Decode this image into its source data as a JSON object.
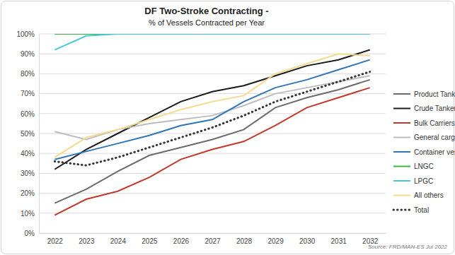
{
  "chart_data": {
    "type": "line",
    "title": "DF Two-Stroke Contracting -",
    "subtitle": "% of Vessels Contracted per Year",
    "source": "Source: FRD/MAN-ES Jul 2022",
    "categories": [
      "2022",
      "2023",
      "2024",
      "2025",
      "2026",
      "2027",
      "2028",
      "2029",
      "2030",
      "2031",
      "2032"
    ],
    "series": [
      {
        "name": "Product Tankers",
        "color": "#6b6b6b",
        "line_style": "solid",
        "values": [
          15,
          22,
          31,
          39,
          43,
          47,
          52,
          63,
          68,
          72,
          77
        ]
      },
      {
        "name": "Crude Tankers",
        "color": "#1a1a1a",
        "line_style": "solid",
        "values": [
          32,
          42,
          50,
          58,
          66,
          71,
          74,
          79,
          84,
          87,
          92
        ]
      },
      {
        "name": "Bulk Carriers",
        "color": "#c0392b",
        "line_style": "solid",
        "values": [
          9,
          17,
          21,
          28,
          37,
          42,
          46,
          54,
          63,
          68,
          73
        ]
      },
      {
        "name": "General cargo",
        "color": "#bdbdbd",
        "line_style": "solid",
        "values": [
          51,
          47,
          52,
          55,
          57,
          59,
          64,
          70,
          73,
          76,
          79
        ]
      },
      {
        "name": "Container vessels",
        "color": "#2e75b6",
        "line_style": "solid",
        "values": [
          37,
          41,
          45,
          49,
          54,
          57,
          66,
          73,
          77,
          82,
          87
        ]
      },
      {
        "name": "LNGC",
        "color": "#3cb44b",
        "line_style": "solid",
        "values": [
          100,
          100,
          100,
          100,
          100,
          100,
          100,
          100,
          100,
          100,
          100
        ]
      },
      {
        "name": "LPGC",
        "color": "#4bc8d8",
        "line_style": "solid",
        "values": [
          92,
          99,
          100,
          100,
          100,
          100,
          100,
          100,
          100,
          100,
          100
        ]
      },
      {
        "name": "All others",
        "color": "#f5d98b",
        "line_style": "solid",
        "values": [
          38,
          48,
          52,
          57,
          62,
          66,
          69,
          80,
          85,
          90,
          89
        ]
      },
      {
        "name": "Total",
        "color": "#333333",
        "line_style": "dotted",
        "values": [
          36,
          34,
          38,
          43,
          48,
          53,
          59,
          66,
          71,
          76,
          81
        ]
      }
    ],
    "ylim": [
      0,
      100
    ],
    "yticks": [
      {
        "value": 0,
        "label": "0%"
      },
      {
        "value": 10,
        "label": "10%"
      },
      {
        "value": 20,
        "label": "20%"
      },
      {
        "value": 30,
        "label": "30%"
      },
      {
        "value": 40,
        "label": "40%"
      },
      {
        "value": 50,
        "label": "50%"
      },
      {
        "value": 60,
        "label": "60%"
      },
      {
        "value": 70,
        "label": "70%"
      },
      {
        "value": 80,
        "label": "80%"
      },
      {
        "value": 90,
        "label": "90%"
      },
      {
        "value": 100,
        "label": "100%"
      }
    ],
    "grid": true,
    "legend": "right"
  }
}
